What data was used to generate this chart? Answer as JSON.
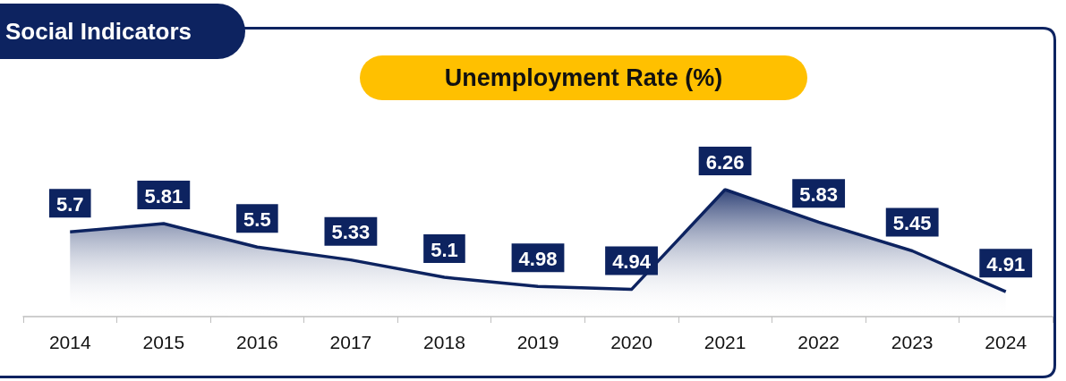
{
  "chart_data": {
    "type": "area",
    "title": "Social Indicators",
    "subtitle": "Unemployment Rate (%)",
    "categories": [
      "2014",
      "2015",
      "2016",
      "2017",
      "2018",
      "2019",
      "2020",
      "2021",
      "2022",
      "2023",
      "2024"
    ],
    "series": [
      {
        "color": "#0d2360",
        "values": [
          5.7,
          5.81,
          5.5,
          5.33,
          5.1,
          4.98,
          4.94,
          6.26,
          5.83,
          5.45,
          4.91
        ]
      }
    ],
    "data_labels": true,
    "grid": false,
    "marker": "none",
    "line_style": "solid",
    "tick_labels": "x"
  }
}
